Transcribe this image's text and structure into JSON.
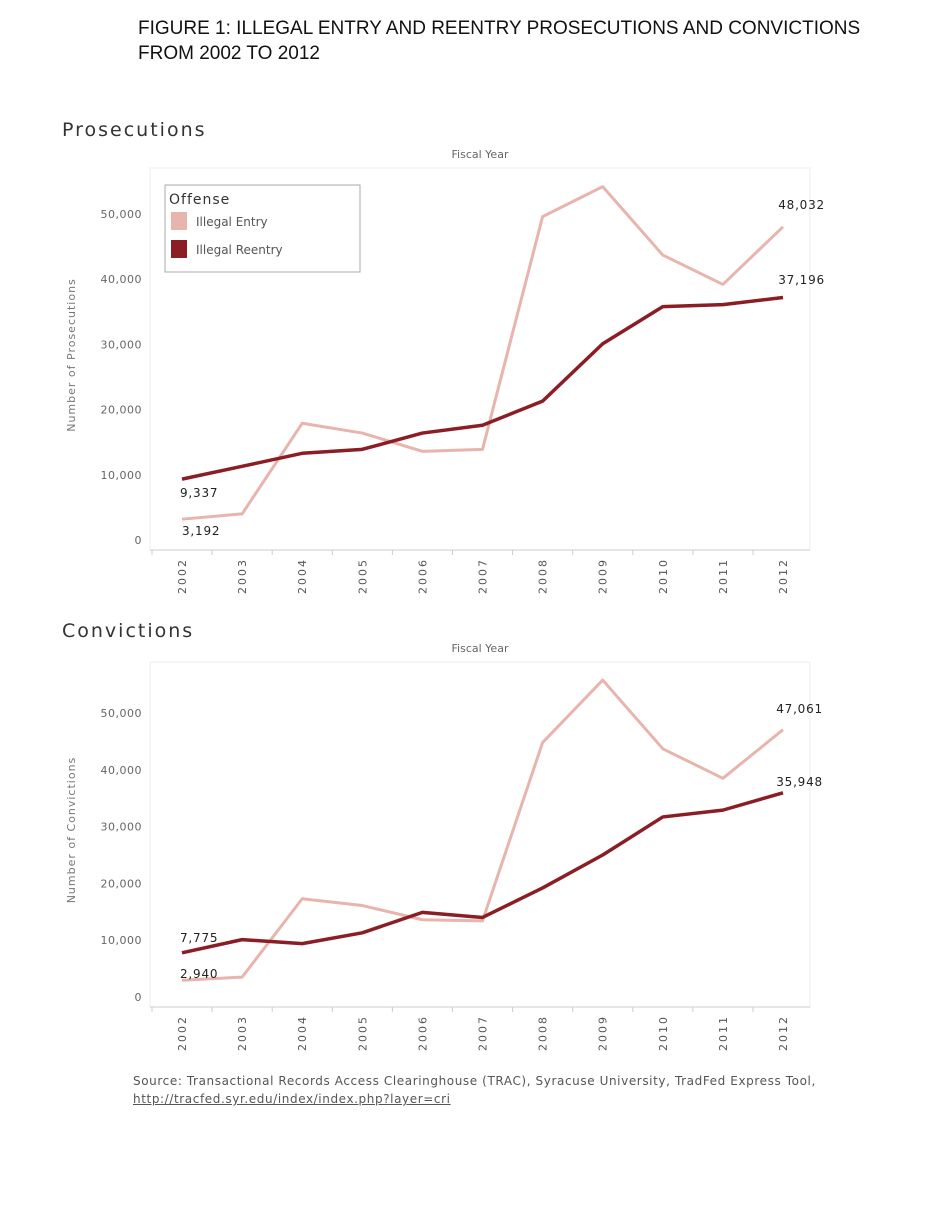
{
  "title": "FIGURE 1: ILLEGAL ENTRY AND REENTRY PROSECUTIONS AND CONVICTIONS\nFROM 2002 TO 2012",
  "source": {
    "text": "Source: Transactional Records Access Clearinghouse (TRAC), Syracuse University, TradFed Express Tool, ",
    "link": "http://tracfed.syr.edu/index/index.php?layer=cri"
  },
  "colors": {
    "Illegal Entry": "#e8b4ae",
    "Illegal Reentry": "#8b1e24"
  },
  "chart_data": [
    {
      "type": "line",
      "title": "Prosecutions",
      "xlabel": "Fiscal Year",
      "ylabel": "Number of Prosecutions",
      "x": [
        "2002",
        "2003",
        "2004",
        "2005",
        "2006",
        "2007",
        "2008",
        "2009",
        "2010",
        "2011",
        "2012"
      ],
      "yticks": [
        "0",
        "10,000",
        "20,000",
        "30,000",
        "40,000",
        "50,000"
      ],
      "ylim": [
        0,
        57000
      ],
      "legend": {
        "title": "Offense",
        "placement": "top-left"
      },
      "series": [
        {
          "name": "Illegal Entry",
          "values": [
            3192,
            4000,
            17900,
            16400,
            13600,
            13900,
            49600,
            54200,
            43700,
            39200,
            48032
          ]
        },
        {
          "name": "Illegal Reentry",
          "values": [
            9337,
            11300,
            13300,
            13900,
            16400,
            17600,
            21300,
            30100,
            35800,
            36100,
            37196
          ]
        }
      ],
      "annotations": [
        "3,192",
        "9,337",
        "48,032",
        "37,196"
      ]
    },
    {
      "type": "line",
      "title": "Convictions",
      "xlabel": "Fiscal Year",
      "ylabel": "Number of Convictions",
      "x": [
        "2002",
        "2003",
        "2004",
        "2005",
        "2006",
        "2007",
        "2008",
        "2009",
        "2010",
        "2011",
        "2012"
      ],
      "yticks": [
        "0",
        "10,000",
        "20,000",
        "30,000",
        "40,000",
        "50,000"
      ],
      "ylim": [
        0,
        58000
      ],
      "series": [
        {
          "name": "Illegal Entry",
          "values": [
            2940,
            3500,
            17300,
            16100,
            13600,
            13400,
            44800,
            55800,
            43700,
            38500,
            47061
          ]
        },
        {
          "name": "Illegal Reentry",
          "values": [
            7775,
            10100,
            9400,
            11300,
            14900,
            14000,
            19200,
            25000,
            31700,
            32900,
            35948
          ]
        }
      ],
      "annotations": [
        "2,940",
        "7,775",
        "47,061",
        "35,948"
      ]
    }
  ]
}
